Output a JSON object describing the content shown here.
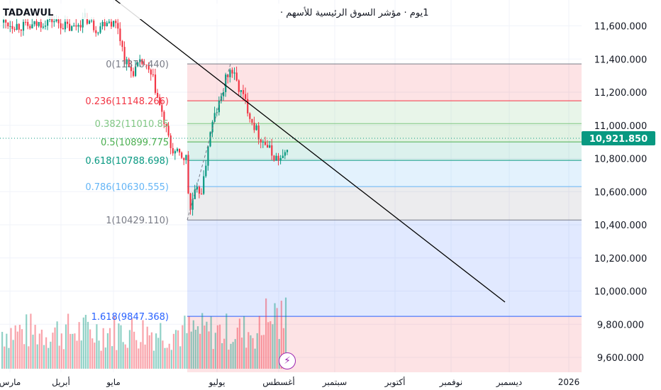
{
  "header": {
    "symbol": "TADAWUL",
    "title": "1يوم · مؤشر السوق الرئيسية للأسهم · "
  },
  "chart_data": {
    "type": "candlestick",
    "x_ticks": [
      "مارس",
      "أبريل",
      "مايو",
      "يوليو",
      "أغسطس",
      "سبتمبر",
      "أكتوبر",
      "نوفمبر",
      "ديسمبر",
      "2026"
    ],
    "y_ticks": [
      "11,600.000",
      "11,400.000",
      "11,200.000",
      "11,000.000",
      "10,800.000",
      "10,600.000",
      "10,400.000",
      "10,200.000",
      "10,000.000",
      "9,800.000",
      "9,600.000"
    ],
    "last_price": "10,921.850",
    "last_price_value": 10921.85,
    "ylim": [
      9560,
      11680
    ],
    "fibonacci": [
      {
        "level": "0",
        "price": 11370.44,
        "label": "0(11370.440)",
        "color": "#787b86"
      },
      {
        "level": "0.236",
        "price": 11148.266,
        "label": "0.236(11148.266)",
        "color": "#f23645"
      },
      {
        "level": "0.382",
        "price": 11010.85,
        "label": "0.382(11010.85",
        "color": "#81c784"
      },
      {
        "level": "0.5",
        "price": 10899.775,
        "label": "0.5(10899.775",
        "color": "#4caf50"
      },
      {
        "level": "0.618",
        "price": 10788.698,
        "label": "0.618(10788.698)",
        "color": "#089981"
      },
      {
        "level": "0.786",
        "price": 10630.555,
        "label": "0.786(10630.555)",
        "color": "#64b5f6"
      },
      {
        "level": "1",
        "price": 10429.11,
        "label": "1(10429.110)",
        "color": "#787b86"
      },
      {
        "level": "1.618",
        "price": 9847.368,
        "label": "1.618(9847.368)",
        "color": "#2962ff"
      }
    ],
    "trendline": {
      "from": {
        "date": "منتصف مارس",
        "value": 11720
      },
      "to": {
        "date": "أوائل ديسمبر",
        "value": 9940
      }
    },
    "grid": true,
    "colors": {
      "up": "#089981",
      "down": "#f23645",
      "trendline": "#000000",
      "price_tag": "#089981"
    }
  }
}
